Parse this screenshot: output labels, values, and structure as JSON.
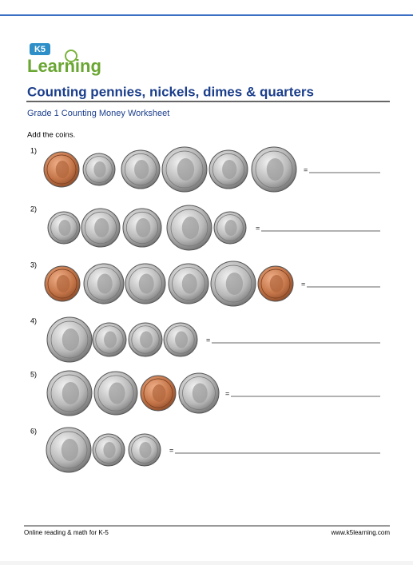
{
  "logo": {
    "badge": "K5",
    "text": "Learning"
  },
  "title": "Counting pennies, nickels, dimes & quarters",
  "subtitle": "Grade 1 Counting Money Worksheet",
  "instruction": "Add the coins.",
  "problems": [
    {
      "number": "1)",
      "equals": "="
    },
    {
      "number": "2)",
      "equals": "="
    },
    {
      "number": "3)",
      "equals": "="
    },
    {
      "number": "4)",
      "equals": "="
    },
    {
      "number": "5)",
      "equals": "="
    },
    {
      "number": "6)",
      "equals": "="
    }
  ],
  "footer": {
    "left": "Online reading & math for K-5",
    "right": "www.k5learning.com"
  }
}
